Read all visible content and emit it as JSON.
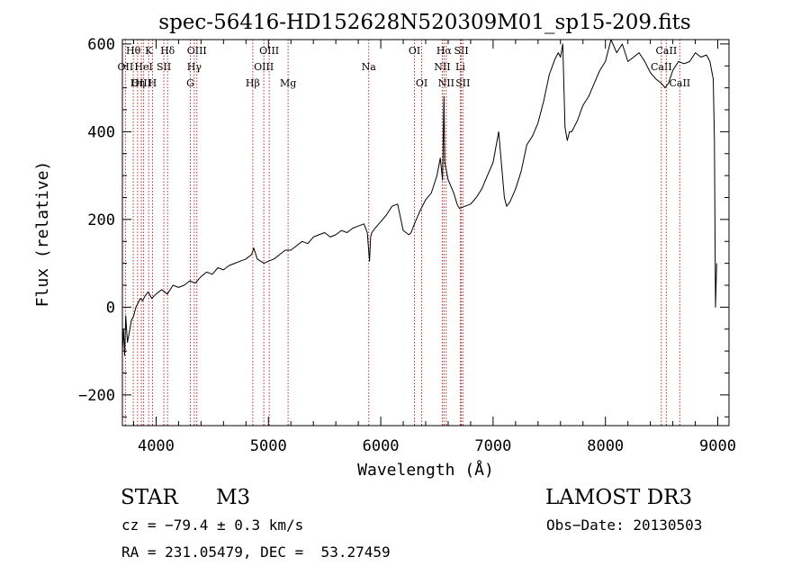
{
  "chart_data": {
    "type": "line",
    "title": "spec-56416-HD152628N520309M01_sp15-209.fits",
    "xlabel": "Wavelength (Å)",
    "ylabel": "Flux (relative)",
    "xlim": [
      3700,
      9100
    ],
    "ylim": [
      -270,
      610
    ],
    "xticks": [
      4000,
      5000,
      6000,
      7000,
      8000,
      9000
    ],
    "yticks": [
      -200,
      0,
      200,
      400,
      600
    ],
    "xtick_labels": [
      "4000",
      "5000",
      "6000",
      "7000",
      "8000",
      "9000"
    ],
    "ytick_labels": [
      "−200",
      "0",
      "200",
      "400",
      "600"
    ],
    "line_color": "#000000",
    "marker_color": "#b03030",
    "series": [
      {
        "name": "flux",
        "x": [
          3700,
          3710,
          3720,
          3730,
          3745,
          3760,
          3780,
          3800,
          3820,
          3840,
          3860,
          3880,
          3900,
          3930,
          3960,
          4000,
          4050,
          4100,
          4150,
          4200,
          4250,
          4300,
          4350,
          4400,
          4450,
          4500,
          4550,
          4600,
          4650,
          4700,
          4750,
          4800,
          4850,
          4870,
          4900,
          4930,
          4960,
          5000,
          5050,
          5100,
          5150,
          5200,
          5250,
          5300,
          5350,
          5400,
          5450,
          5500,
          5550,
          5600,
          5650,
          5700,
          5750,
          5800,
          5850,
          5880,
          5900,
          5910,
          5920,
          5950,
          6000,
          6050,
          6100,
          6150,
          6200,
          6250,
          6270,
          6300,
          6350,
          6400,
          6450,
          6500,
          6530,
          6550,
          6563,
          6570,
          6600,
          6650,
          6680,
          6700,
          6750,
          6800,
          6850,
          6900,
          6950,
          7000,
          7050,
          7100,
          7120,
          7150,
          7200,
          7250,
          7300,
          7350,
          7400,
          7450,
          7500,
          7550,
          7580,
          7600,
          7620,
          7640,
          7660,
          7680,
          7700,
          7750,
          7800,
          7850,
          7900,
          7950,
          8000,
          8050,
          8100,
          8150,
          8200,
          8250,
          8300,
          8350,
          8400,
          8450,
          8500,
          8530,
          8560,
          8600,
          8650,
          8700,
          8750,
          8800,
          8850,
          8900,
          8930,
          8960,
          8970,
          8980,
          8990
        ],
        "y": [
          -100,
          -50,
          -110,
          -20,
          -80,
          -60,
          -30,
          -20,
          0,
          10,
          20,
          15,
          25,
          35,
          20,
          30,
          40,
          30,
          50,
          45,
          50,
          60,
          55,
          70,
          80,
          75,
          90,
          85,
          95,
          100,
          105,
          110,
          120,
          135,
          110,
          105,
          100,
          105,
          110,
          120,
          130,
          130,
          140,
          150,
          145,
          160,
          165,
          170,
          160,
          165,
          175,
          170,
          180,
          185,
          190,
          170,
          105,
          160,
          170,
          180,
          195,
          210,
          230,
          235,
          175,
          165,
          170,
          190,
          220,
          245,
          260,
          300,
          340,
          290,
          480,
          330,
          290,
          260,
          235,
          225,
          230,
          235,
          250,
          270,
          300,
          330,
          400,
          250,
          230,
          240,
          270,
          310,
          370,
          390,
          420,
          470,
          530,
          565,
          580,
          570,
          600,
          410,
          380,
          400,
          400,
          425,
          460,
          480,
          510,
          540,
          560,
          610,
          580,
          600,
          560,
          570,
          580,
          560,
          535,
          520,
          510,
          500,
          510,
          540,
          560,
          555,
          560,
          580,
          570,
          575,
          560,
          520,
          380,
          0,
          100
        ]
      }
    ],
    "line_markers": [
      {
        "label": "Hθ",
        "wl": 3797,
        "row": 1
      },
      {
        "label": "OII",
        "wl": 3727,
        "row": 2
      },
      {
        "label": "OIII",
        "wl": 3869,
        "row": 3
      },
      {
        "label": "K",
        "wl": 3934,
        "row": 1
      },
      {
        "label": "HeI",
        "wl": 3889,
        "row": 2
      },
      {
        "label": "Hη",
        "wl": 3835,
        "row": 3
      },
      {
        "label": "H",
        "wl": 3968,
        "row": 3
      },
      {
        "label": "Hδ",
        "wl": 4102,
        "row": 1
      },
      {
        "label": "SII",
        "wl": 4069,
        "row": 2
      },
      {
        "label": "OIII",
        "wl": 4363,
        "row": 1
      },
      {
        "label": "Hγ",
        "wl": 4340,
        "row": 2
      },
      {
        "label": "G",
        "wl": 4305,
        "row": 3
      },
      {
        "label": "Hβ",
        "wl": 4861,
        "row": 3
      },
      {
        "label": "OIII",
        "wl": 4959,
        "row": 2
      },
      {
        "label": "OIII",
        "wl": 5007,
        "row": 1
      },
      {
        "label": "Mg",
        "wl": 5175,
        "row": 3
      },
      {
        "label": "Na",
        "wl": 5893,
        "row": 2
      },
      {
        "label": "OI",
        "wl": 6300,
        "row": 1
      },
      {
        "label": "OI",
        "wl": 6364,
        "row": 3
      },
      {
        "label": "NII",
        "wl": 6548,
        "row": 2
      },
      {
        "label": "Hα",
        "wl": 6563,
        "row": 1
      },
      {
        "label": "NII",
        "wl": 6583,
        "row": 3
      },
      {
        "label": "Li",
        "wl": 6708,
        "row": 2
      },
      {
        "label": "SII",
        "wl": 6717,
        "row": 1
      },
      {
        "label": "SII",
        "wl": 6731,
        "row": 3
      },
      {
        "label": "CaII",
        "wl": 8498,
        "row": 2
      },
      {
        "label": "CaII",
        "wl": 8542,
        "row": 1
      },
      {
        "label": "CaII",
        "wl": 8662,
        "row": 3
      }
    ]
  },
  "info": {
    "object_class": "STAR",
    "subclass": "M3",
    "survey": "LAMOST DR3",
    "redshift": "cz = −79.4 ± 0.3 km/s",
    "obs_date": "Obs−Date: 20130503",
    "coords": "RA = 231.05479, DEC =  53.27459"
  }
}
